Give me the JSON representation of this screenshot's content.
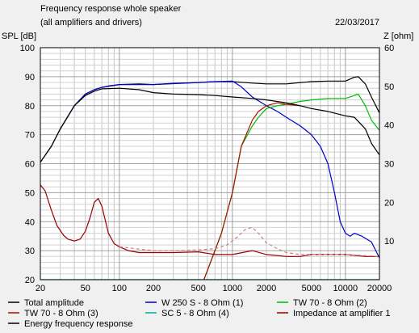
{
  "chart_data": {
    "type": "line",
    "title": "Frequency response whole speaker",
    "subtitle": "(all amplifiers and drivers)",
    "date": "22/03/2017",
    "ylabel": "SPL [dB]",
    "y2label": "Z [ohm]",
    "xscale": "log",
    "xlim": [
      20,
      20000
    ],
    "ylim": [
      20,
      100
    ],
    "y2lim": [
      0,
      60
    ],
    "grid": true,
    "x_ticks": [
      {
        "v": 20,
        "label": "20"
      },
      {
        "v": 50,
        "label": "50"
      },
      {
        "v": 100,
        "label": "100"
      },
      {
        "v": 200,
        "label": "200"
      },
      {
        "v": 500,
        "label": "500"
      },
      {
        "v": 1000,
        "label": "1000"
      },
      {
        "v": 2000,
        "label": "2000"
      },
      {
        "v": 5000,
        "label": "5000"
      },
      {
        "v": 10000,
        "label": "10000"
      },
      {
        "v": 20000,
        "label": "20000"
      }
    ],
    "y_ticks": [
      {
        "v": 20,
        "label": "20"
      },
      {
        "v": 30,
        "label": "30"
      },
      {
        "v": 40,
        "label": "40"
      },
      {
        "v": 50,
        "label": "50"
      },
      {
        "v": 60,
        "label": "60"
      },
      {
        "v": 70,
        "label": "70"
      },
      {
        "v": 80,
        "label": "80"
      },
      {
        "v": 90,
        "label": "90"
      },
      {
        "v": 100,
        "label": "100"
      }
    ],
    "y2_ticks": [
      {
        "v": 10,
        "label": "10"
      },
      {
        "v": 20,
        "label": "20"
      },
      {
        "v": 30,
        "label": "30"
      },
      {
        "v": 40,
        "label": "40"
      },
      {
        "v": 50,
        "label": "50"
      },
      {
        "v": 60,
        "label": "60"
      }
    ],
    "legend_position": "bottom",
    "series": [
      {
        "name": "Total amplitude",
        "color": "#000000",
        "dash": false,
        "points": [
          [
            20,
            60.5
          ],
          [
            25,
            66
          ],
          [
            30,
            72
          ],
          [
            40,
            80
          ],
          [
            50,
            84
          ],
          [
            60,
            85.5
          ],
          [
            70,
            86.3
          ],
          [
            80,
            86.8
          ],
          [
            100,
            87.3
          ],
          [
            150,
            87.5
          ],
          [
            200,
            87.3
          ],
          [
            300,
            87.7
          ],
          [
            500,
            88
          ],
          [
            700,
            88.3
          ],
          [
            1000,
            88.3
          ],
          [
            1500,
            87.8
          ],
          [
            2000,
            87.5
          ],
          [
            3000,
            87.5
          ],
          [
            4000,
            88
          ],
          [
            5000,
            88.3
          ],
          [
            7000,
            88.5
          ],
          [
            10000,
            88.5
          ],
          [
            12000,
            89.8
          ],
          [
            13000,
            90
          ],
          [
            15000,
            87.5
          ],
          [
            17000,
            83
          ],
          [
            20000,
            77.5
          ]
        ]
      },
      {
        "name": "W 250 S - 8 Ohm  (1)",
        "color": "#0000cc",
        "dash": false,
        "points": [
          [
            20,
            null
          ],
          [
            30,
            72
          ],
          [
            40,
            80
          ],
          [
            50,
            84
          ],
          [
            60,
            85.5
          ],
          [
            70,
            86.3
          ],
          [
            100,
            87.3
          ],
          [
            200,
            87.3
          ],
          [
            500,
            88
          ],
          [
            700,
            88.3
          ],
          [
            1000,
            88.5
          ],
          [
            1200,
            86.5
          ],
          [
            1500,
            83
          ],
          [
            2000,
            80
          ],
          [
            2500,
            78
          ],
          [
            3000,
            76
          ],
          [
            4000,
            73
          ],
          [
            5000,
            70
          ],
          [
            6000,
            66
          ],
          [
            7000,
            60
          ],
          [
            8000,
            50
          ],
          [
            9000,
            40
          ],
          [
            10000,
            36
          ],
          [
            11000,
            35
          ],
          [
            12000,
            36
          ],
          [
            14000,
            35
          ],
          [
            17000,
            33
          ],
          [
            20000,
            27.5
          ]
        ]
      },
      {
        "name": "TW 70 - 8 Ohm (2)",
        "color": "#00bb00",
        "dash": false,
        "points": [
          [
            560,
            20
          ],
          [
            700,
            30
          ],
          [
            800,
            36
          ],
          [
            1000,
            50
          ],
          [
            1200,
            66
          ],
          [
            1500,
            73
          ],
          [
            1700,
            76
          ],
          [
            2000,
            79
          ],
          [
            2500,
            80
          ],
          [
            3000,
            80.5
          ],
          [
            4000,
            81.5
          ],
          [
            5000,
            82
          ],
          [
            7000,
            82.5
          ],
          [
            10000,
            82.5
          ],
          [
            12000,
            83.5
          ],
          [
            13000,
            84
          ],
          [
            15000,
            80
          ],
          [
            17000,
            75
          ],
          [
            20000,
            71.5
          ]
        ]
      },
      {
        "name": "TW 70 - 8 Ohm (3)",
        "color": "#aa1100",
        "dash": false,
        "points": [
          [
            560,
            20
          ],
          [
            700,
            30
          ],
          [
            800,
            36
          ],
          [
            1000,
            50
          ],
          [
            1200,
            66
          ],
          [
            1500,
            75
          ],
          [
            1700,
            78
          ],
          [
            2000,
            80
          ],
          [
            2500,
            81
          ],
          [
            3000,
            80.5
          ],
          [
            4000,
            80
          ]
        ]
      },
      {
        "name": "SC 5 - 8 Ohm (4)",
        "color": "#00aaaa",
        "dash": false,
        "points": [
          [
            20,
            20
          ],
          [
            20000,
            20
          ]
        ]
      },
      {
        "name": "Impedance at amplifier 1",
        "color": "#990000",
        "dash": false,
        "axis": "right",
        "points": [
          [
            20,
            24.5
          ],
          [
            22,
            23
          ],
          [
            25,
            18
          ],
          [
            28,
            14
          ],
          [
            32,
            11.5
          ],
          [
            35,
            10.5
          ],
          [
            40,
            10
          ],
          [
            45,
            10.5
          ],
          [
            50,
            12.5
          ],
          [
            55,
            16
          ],
          [
            60,
            20
          ],
          [
            65,
            21
          ],
          [
            70,
            19
          ],
          [
            80,
            12
          ],
          [
            90,
            9.3
          ],
          [
            100,
            8.5
          ],
          [
            120,
            7.5
          ],
          [
            150,
            7
          ],
          [
            200,
            7
          ],
          [
            300,
            7
          ],
          [
            500,
            7.2
          ],
          [
            700,
            6.5
          ],
          [
            1000,
            6.5
          ],
          [
            1500,
            7.5
          ],
          [
            2000,
            6.5
          ],
          [
            3000,
            6
          ],
          [
            4000,
            6
          ],
          [
            5000,
            6.5
          ],
          [
            7000,
            6.5
          ],
          [
            10000,
            6.5
          ],
          [
            15000,
            6
          ],
          [
            20000,
            6
          ]
        ]
      },
      {
        "name": "Energy frequency response",
        "color": "#000000",
        "dash": false,
        "points": [
          [
            20,
            60.5
          ],
          [
            25,
            66
          ],
          [
            30,
            72
          ],
          [
            40,
            80
          ],
          [
            50,
            83.5
          ],
          [
            60,
            85
          ],
          [
            70,
            85.8
          ],
          [
            100,
            86
          ],
          [
            150,
            85.5
          ],
          [
            200,
            84.5
          ],
          [
            300,
            84
          ],
          [
            500,
            83.8
          ],
          [
            700,
            83.5
          ],
          [
            1000,
            83
          ],
          [
            1500,
            82.5
          ],
          [
            2000,
            82
          ],
          [
            3000,
            81
          ],
          [
            4000,
            80
          ],
          [
            5000,
            79
          ],
          [
            7000,
            78
          ],
          [
            10000,
            76.5
          ],
          [
            12000,
            76
          ],
          [
            15000,
            72
          ],
          [
            17000,
            67
          ],
          [
            20000,
            63
          ]
        ]
      },
      {
        "name": "",
        "color": "#d08080",
        "dash": true,
        "axis": "right",
        "points": [
          [
            100,
            8.5
          ],
          [
            200,
            7.5
          ],
          [
            300,
            7.5
          ],
          [
            500,
            7.7
          ],
          [
            700,
            8
          ],
          [
            900,
            9
          ],
          [
            1100,
            11
          ],
          [
            1300,
            13
          ],
          [
            1500,
            13.5
          ],
          [
            1700,
            12
          ],
          [
            2000,
            9.5
          ],
          [
            2500,
            8
          ],
          [
            3000,
            7
          ],
          [
            4000,
            6.5
          ],
          [
            5000,
            6.5
          ],
          [
            7000,
            6.5
          ],
          [
            10000,
            6.5
          ],
          [
            15000,
            6.2
          ],
          [
            20000,
            6
          ]
        ]
      }
    ],
    "legend": [
      {
        "label": "Total amplitude",
        "color": "#000000"
      },
      {
        "label": "W 250 S - 8 Ohm  (1)",
        "color": "#0000cc"
      },
      {
        "label": "TW 70 - 8 Ohm (2)",
        "color": "#00bb00"
      },
      {
        "label": "TW 70 - 8 Ohm (3)",
        "color": "#aa1100"
      },
      {
        "label": "SC 5 - 8 Ohm (4)",
        "color": "#00aaaa"
      },
      {
        "label": "Impedance at amplifier 1",
        "color": "#990000"
      },
      {
        "label": "Energy frequency response",
        "color": "#000000"
      }
    ]
  }
}
